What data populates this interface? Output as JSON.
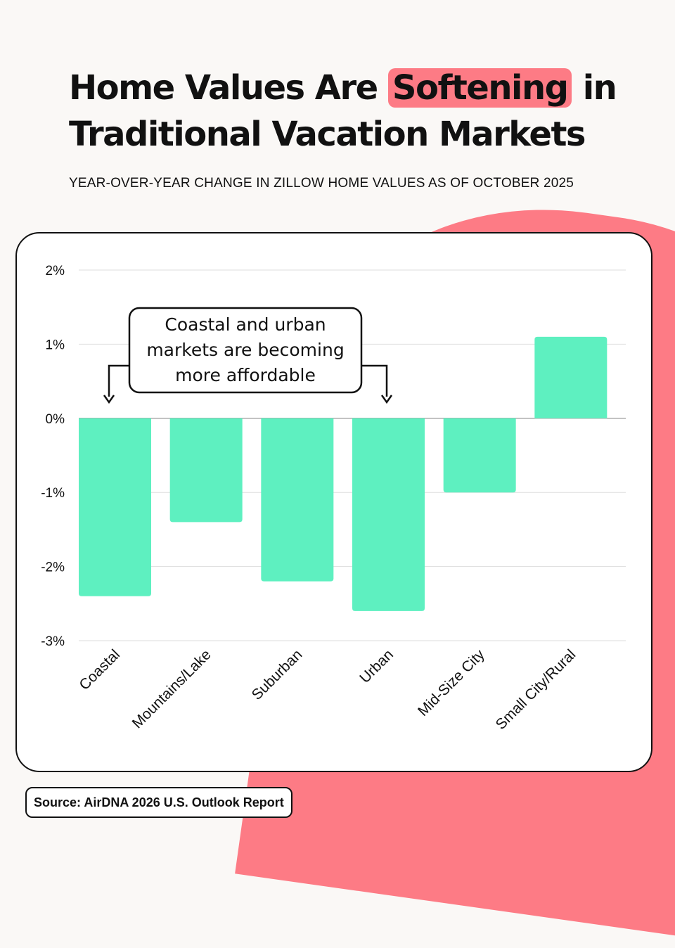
{
  "header": {
    "title_before": "Home Values Are ",
    "title_highlight": "Softening",
    "title_after": " in Traditional Vacation Markets",
    "subtitle": "YEAR-OVER-YEAR CHANGE IN ZILLOW HOME VALUES AS OF OCTOBER 2025"
  },
  "annotation": {
    "lines": [
      "Coastal and urban",
      "markets are becoming",
      "more affordable"
    ]
  },
  "footer": {
    "source": "Source: AirDNA 2026 U.S. Outlook Report"
  },
  "colors": {
    "bar": "#5ef0c0",
    "accent": "#fd7b85",
    "grid": "#dddddd",
    "background": "#faf8f6"
  },
  "chart_data": {
    "type": "bar",
    "title": "",
    "xlabel": "",
    "ylabel": "",
    "categories": [
      "Coastal",
      "Mountains/Lake",
      "Suburban",
      "Urban",
      "Mid-Size City",
      "Small City/Rural"
    ],
    "values": [
      -2.4,
      -1.4,
      -2.2,
      -2.6,
      -1.0,
      1.1
    ],
    "unit": "%",
    "ylim": [
      -3,
      2
    ],
    "yticks": [
      2,
      1,
      0,
      -1,
      -2,
      -3
    ],
    "ytick_labels": [
      "2%",
      "1%",
      "0%",
      "-1%",
      "-2%",
      "-3%"
    ],
    "grid": true,
    "legend": "none"
  }
}
